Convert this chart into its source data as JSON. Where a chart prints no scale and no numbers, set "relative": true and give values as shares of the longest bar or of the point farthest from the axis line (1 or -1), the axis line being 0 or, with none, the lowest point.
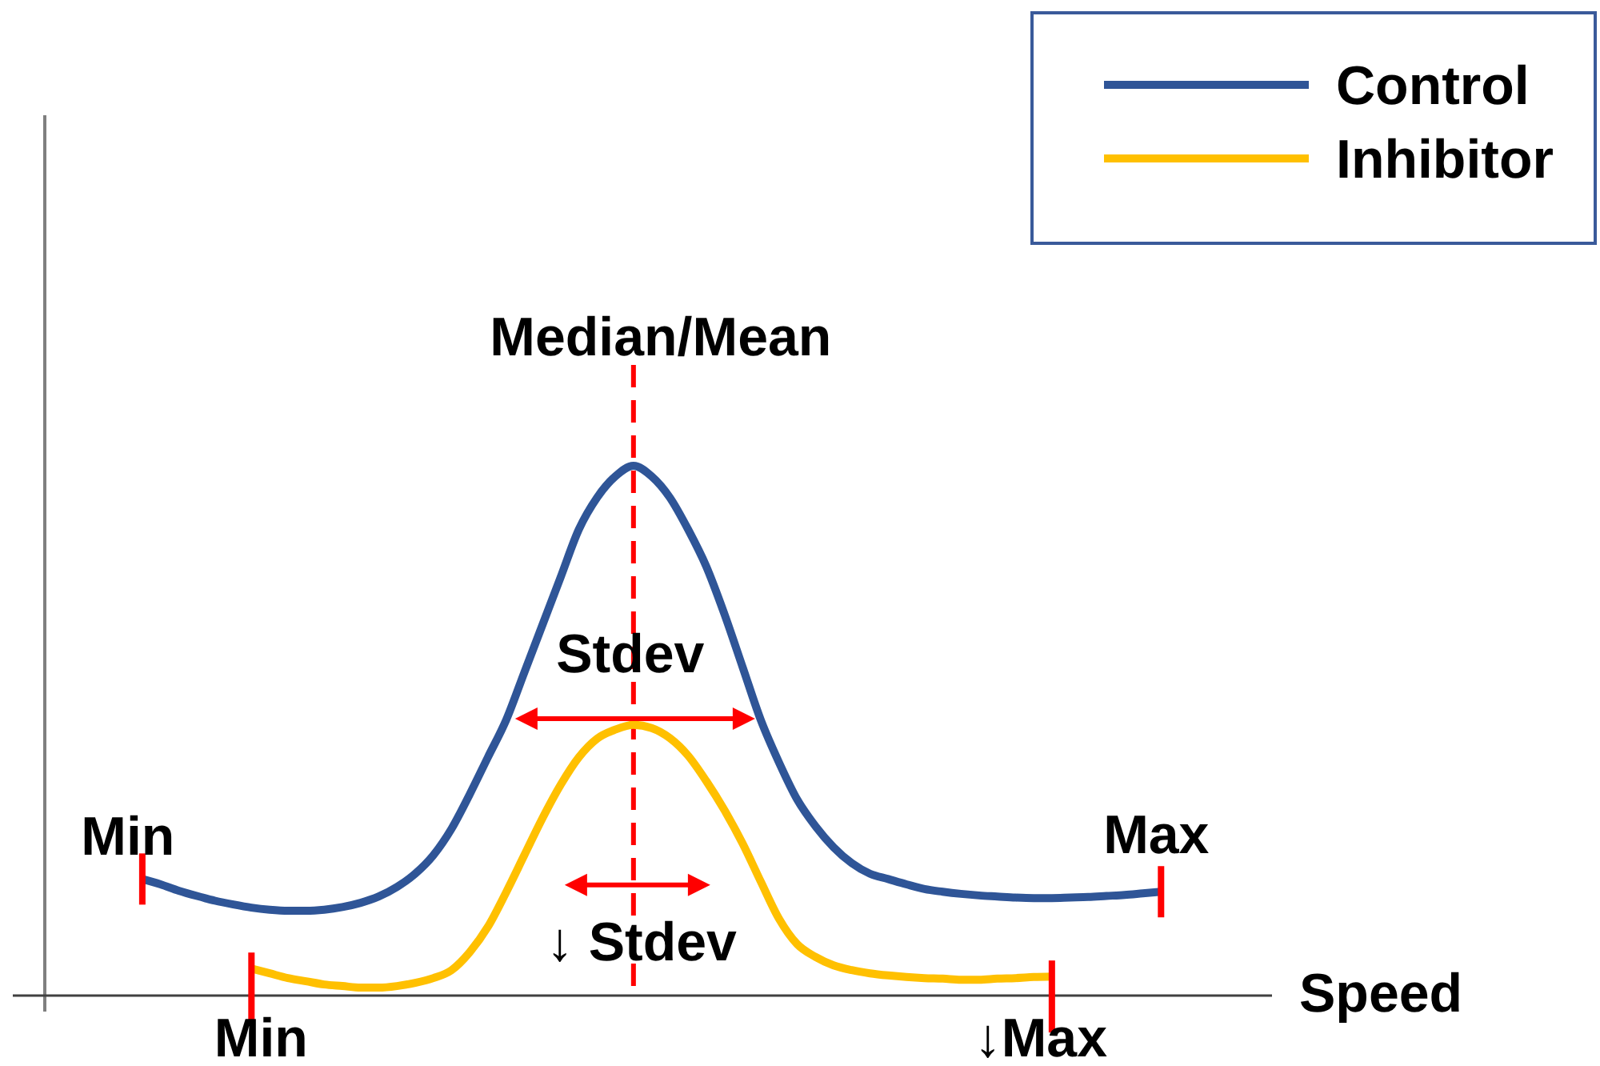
{
  "chart_data": {
    "type": "line",
    "relative": true,
    "xlabel": "Speed",
    "legend": "top right",
    "categories": [
      null,
      null,
      null,
      null,
      null,
      null,
      null,
      null,
      null,
      null,
      null,
      null,
      null,
      null,
      null,
      null,
      null,
      null,
      null,
      null,
      null,
      null,
      null,
      null,
      null,
      null,
      null,
      null,
      null,
      null,
      null,
      null,
      null,
      null,
      null,
      null,
      null,
      null,
      null,
      null,
      null,
      null,
      null,
      null,
      null,
      null,
      null,
      null,
      null,
      null,
      null,
      null,
      null,
      null,
      null,
      null,
      null
    ],
    "series": [
      {
        "name": "Control",
        "color": "#2f5597",
        "values": [
          0.22,
          0.21,
          0.198,
          0.188,
          0.179,
          0.172,
          0.166,
          0.162,
          0.16,
          0.16,
          0.162,
          0.167,
          0.175,
          0.187,
          0.205,
          0.23,
          0.265,
          0.315,
          0.38,
          0.45,
          0.52,
          0.61,
          0.7,
          0.79,
          0.88,
          0.94,
          0.98,
          1,
          0.98,
          0.94,
          0.88,
          0.81,
          0.72,
          0.62,
          0.52,
          0.44,
          0.37,
          0.32,
          0.28,
          0.25,
          0.23,
          0.22,
          0.21,
          0.201,
          0.196,
          0.192,
          0.189,
          0.187,
          0.185,
          0.184,
          0.184,
          0.185,
          0.186,
          0.188,
          0.19,
          0.193,
          0.196
        ]
      },
      {
        "name": "Inhibitor",
        "color": "#ffc000",
        "values": [
          null,
          null,
          null,
          null,
          null,
          null,
          0.051,
          0.042,
          0.033,
          0.027,
          0.021,
          0.018,
          0.015,
          0.015,
          0.018,
          0.024,
          0.033,
          0.048,
          0.082,
          0.13,
          0.195,
          0.265,
          0.335,
          0.398,
          0.45,
          0.485,
          0.502,
          0.511,
          0.505,
          0.486,
          0.453,
          0.405,
          0.35,
          0.287,
          0.215,
          0.145,
          0.097,
          0.073,
          0.057,
          0.048,
          0.042,
          0.038,
          0.035,
          0.033,
          0.032,
          0.03,
          0.03,
          0.032,
          0.033,
          0.035,
          0.036,
          null,
          null,
          null,
          null,
          null,
          null
        ]
      }
    ],
    "annotations": [
      "Median/Mean",
      "Stdev",
      "↓ Stdev",
      "Min",
      "Max",
      "Min",
      "↓Max"
    ]
  }
}
